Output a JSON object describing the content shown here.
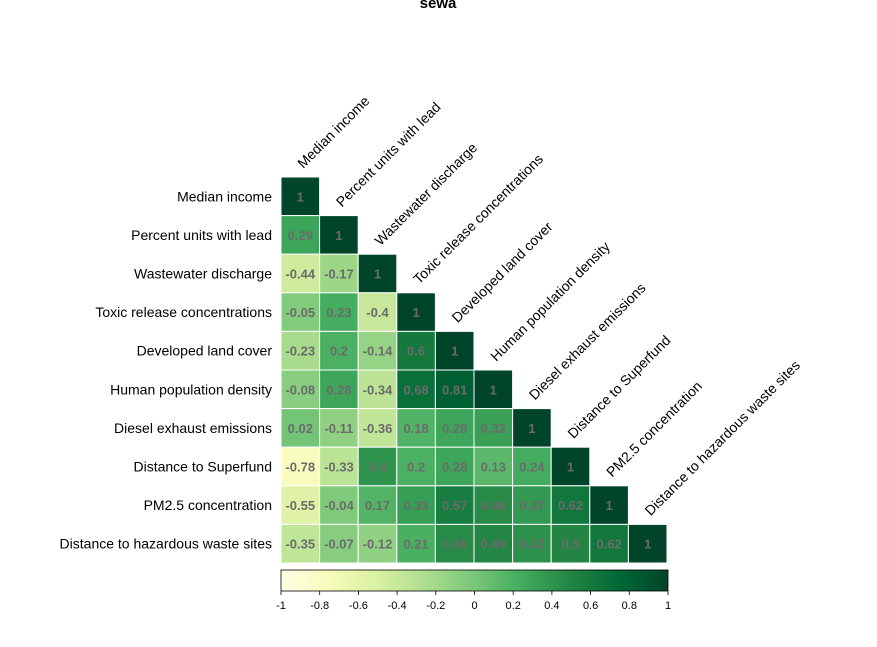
{
  "chart_data": {
    "type": "heatmap",
    "title": "sewa",
    "variables": [
      "Median income",
      "Percent units with lead",
      "Wastewater discharge",
      "Toxic release concentrations",
      "Developed land cover",
      "Human population density",
      "Diesel exhaust emissions",
      "Distance to Superfund",
      "PM2.5 concentration",
      "Distance to hazardous waste sites"
    ],
    "matrix": [
      [
        1
      ],
      [
        0.29,
        1
      ],
      [
        -0.44,
        -0.17,
        1
      ],
      [
        -0.05,
        0.23,
        -0.4,
        1
      ],
      [
        -0.23,
        0.2,
        -0.14,
        0.6,
        1
      ],
      [
        -0.08,
        0.28,
        -0.34,
        0.68,
        0.81,
        1
      ],
      [
        0.02,
        -0.11,
        -0.36,
        0.18,
        0.28,
        0.32,
        1
      ],
      [
        -0.78,
        -0.33,
        0.4,
        0.2,
        0.28,
        0.13,
        0.24,
        1
      ],
      [
        -0.55,
        -0.04,
        0.17,
        0.33,
        0.57,
        0.46,
        0.37,
        0.62,
        1
      ],
      [
        -0.35,
        -0.07,
        -0.12,
        0.21,
        0.46,
        0.49,
        0.42,
        0.5,
        0.62,
        1
      ]
    ],
    "colorbar": {
      "range": [
        -1,
        1
      ],
      "ticks": [
        "-1",
        "-0.8",
        "-0.6",
        "-0.4",
        "-0.2",
        "0",
        "0.2",
        "0.4",
        "0.6",
        "0.8",
        "1"
      ],
      "colors": [
        "#ffffe5",
        "#f7fcb9",
        "#d9f0a3",
        "#addd8e",
        "#78c679",
        "#41ab5d",
        "#238443",
        "#006837",
        "#004529"
      ]
    },
    "label_color": "#6b6b6b"
  }
}
